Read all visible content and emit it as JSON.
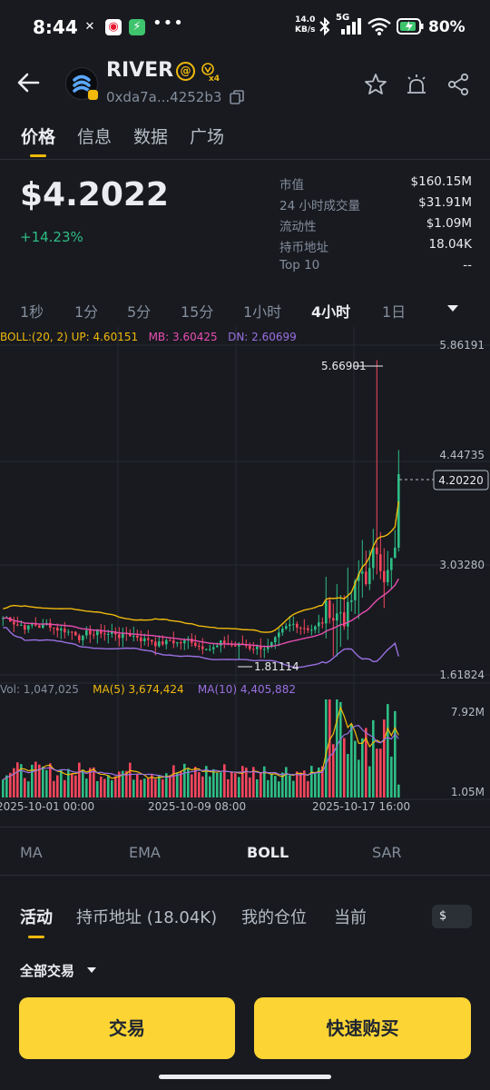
{
  "status_bar": {
    "time": "8:44",
    "net_speed": "14.0",
    "net_unit": "KB/s",
    "network": "5G",
    "battery": "80%"
  },
  "header": {
    "token_name": "RIVER",
    "address": "0xda7a...4252b3",
    "badge_multiplier": "x4",
    "icons": [
      "back-arrow-icon",
      "star-icon",
      "alert-icon",
      "share-icon",
      "copy-icon"
    ]
  },
  "tabs": [
    "价格",
    "信息",
    "数据",
    "广场"
  ],
  "price": {
    "value": "$4.2022",
    "change": "+14.23%",
    "change_color": "#2ebd85"
  },
  "stats": [
    {
      "label": "市值",
      "value": "$160.15M"
    },
    {
      "label": "24 小时成交量",
      "value": "$31.91M"
    },
    {
      "label": "流动性",
      "value": "$1.09M"
    },
    {
      "label": "持币地址",
      "value": "18.04K"
    },
    {
      "label": "Top 10",
      "value": "--"
    }
  ],
  "intervals": [
    "1秒",
    "1分",
    "5分",
    "15分",
    "1小时",
    "4小时",
    "1日"
  ],
  "active_interval": "4小时",
  "chart": {
    "boll_label": "BOLL:(20, 2)",
    "up": "UP: 4.60151",
    "mb": "MB: 3.60425",
    "dn": "DN: 2.60699",
    "vol_label": "Vol: 1,047,025",
    "ma5": "MA(5) 3,674,424",
    "ma10": "MA(10) 4,405,882",
    "price_axis": [
      "5.86191",
      "4.44735",
      "3.03280",
      "1.61824"
    ],
    "current_price_tag": "4.20220",
    "high_label": "5.66901",
    "low_label": "1.81114",
    "vol_axis": [
      "7.92M",
      "1.05M"
    ],
    "time_axis": [
      "2025-10-01 00:00",
      "2025-10-09 08:00",
      "2025-10-17 16:00"
    ],
    "colors": {
      "up": "#2ebd85",
      "down": "#f6465d",
      "boll_up": "#f0b90b",
      "boll_mb": "#e84eb0",
      "boll_dn": "#9a70e0"
    }
  },
  "chart_data": {
    "type": "candlestick",
    "interval": "4h",
    "price_range": [
      1.61824,
      5.86191
    ],
    "indicators": {
      "UP": 4.60151,
      "MB": 3.60425,
      "DN": 2.60699
    },
    "high": 5.66901,
    "low": 1.81114,
    "last": 4.2022,
    "volume_range": [
      1050000,
      7920000
    ],
    "volume_last": 1047025,
    "vol_ma5": 3674424,
    "vol_ma10": 4405882
  },
  "indicators_bar": [
    "MA",
    "EMA",
    "BOLL",
    "SAR"
  ],
  "active_indicator": "BOLL",
  "activity_tabs": [
    "活动",
    "持币地址 (18.04K)",
    "我的仓位",
    "当前"
  ],
  "currency_toggle": "$",
  "filter": "全部交易",
  "buttons": {
    "trade": "交易",
    "quick_buy": "快速购买"
  }
}
